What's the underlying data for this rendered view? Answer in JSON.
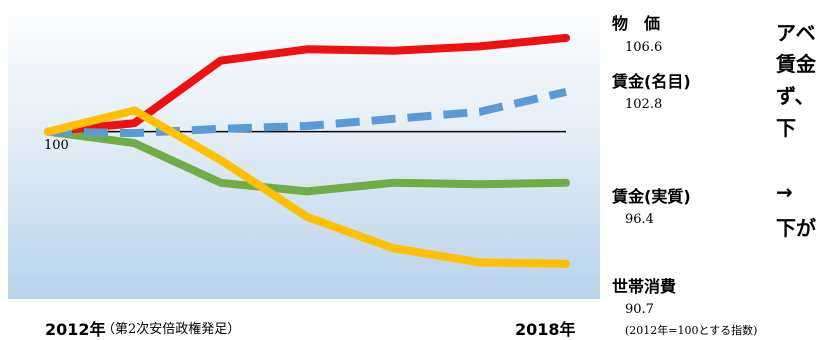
{
  "chart_data": {
    "type": "line",
    "x": [
      "2012",
      "2013",
      "2014",
      "2015",
      "2016",
      "2017",
      "2018"
    ],
    "baseline": 100,
    "baseline_label": "100",
    "ylim": [
      89,
      108
    ],
    "series": [
      {
        "name": "物　価",
        "color": "#ee1111",
        "dash": false,
        "end_value": "106.6",
        "values": [
          100,
          100.6,
          105.0,
          105.8,
          105.7,
          106.0,
          106.6
        ]
      },
      {
        "name": "賃金(名目)",
        "color": "#5b9bd5",
        "dash": true,
        "end_value": "102.8",
        "values": [
          100,
          99.9,
          100.2,
          100.4,
          100.9,
          101.4,
          102.8
        ]
      },
      {
        "name": "賃金(実質)",
        "color": "#70ad47",
        "dash": false,
        "end_value": "96.4",
        "values": [
          100,
          99.2,
          96.4,
          95.8,
          96.4,
          96.3,
          96.4
        ]
      },
      {
        "name": "世帯消費",
        "color": "#ffc000",
        "dash": false,
        "end_value": "90.7",
        "values": [
          100,
          101.5,
          98.0,
          94.0,
          91.8,
          90.8,
          90.7
        ]
      }
    ]
  },
  "footer": {
    "start_label": "2012年",
    "start_note": "（第2次安倍政権発足）",
    "end_label": "2018年",
    "index_note": "(2012年=100とする指数)"
  },
  "side_text": {
    "line1": "アベ",
    "line2": "賃金",
    "line3": "ず、",
    "line4": "下",
    "line5": "→",
    "line6": "下が"
  }
}
